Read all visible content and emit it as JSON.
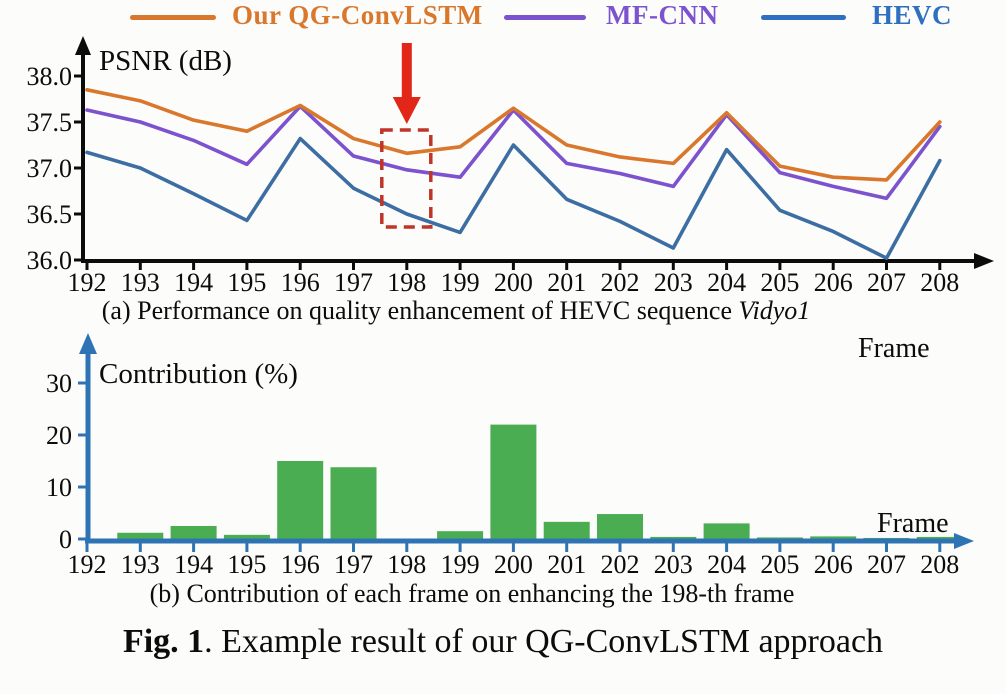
{
  "legend": {
    "items": [
      {
        "label": "Our QG-ConvLSTM",
        "color": "#d9772c"
      },
      {
        "label": "MF-CNN",
        "color": "#7c52ce"
      },
      {
        "label": "HEVC",
        "color": "#2f6fc1"
      }
    ]
  },
  "chart_data": [
    {
      "type": "line",
      "ylabel": "PSNR (dB)",
      "xlabel": "Frame",
      "x": [
        192,
        193,
        194,
        195,
        196,
        197,
        198,
        199,
        200,
        201,
        202,
        203,
        204,
        205,
        206,
        207,
        208
      ],
      "ylim": [
        36.0,
        38.2
      ],
      "yticks": [
        36.0,
        36.5,
        37.0,
        37.5,
        38.0
      ],
      "grid": false,
      "legend_position": "top",
      "series": [
        {
          "name": "HEVC",
          "color": "#3c6da3",
          "values": [
            37.17,
            37.0,
            36.72,
            36.43,
            37.32,
            36.78,
            36.5,
            36.3,
            37.25,
            36.66,
            36.42,
            36.13,
            37.2,
            36.54,
            36.31,
            36.02,
            37.08
          ]
        },
        {
          "name": "MF-CNN",
          "color": "#7c52ce",
          "values": [
            37.63,
            37.5,
            37.3,
            37.04,
            37.67,
            37.13,
            36.98,
            36.9,
            37.63,
            37.05,
            36.94,
            36.8,
            37.58,
            36.95,
            36.8,
            36.67,
            37.45
          ]
        },
        {
          "name": "Our QG-ConvLSTM",
          "color": "#d9772c",
          "values": [
            37.85,
            37.73,
            37.52,
            37.4,
            37.68,
            37.32,
            37.16,
            37.23,
            37.65,
            37.25,
            37.12,
            37.05,
            37.6,
            37.02,
            36.9,
            36.87,
            37.5
          ]
        }
      ],
      "annotations": {
        "highlighted_frame": 198,
        "arrow_color": "#e22718",
        "box_color": "#c03527"
      },
      "caption_prefix": "(a) Performance on quality enhancement of HEVC sequence ",
      "caption_italic": "Vidyo1"
    },
    {
      "type": "bar",
      "ylabel": "Contribution (%)",
      "xlabel": "Frame",
      "categories": [
        192,
        193,
        194,
        195,
        196,
        197,
        198,
        199,
        200,
        201,
        202,
        203,
        204,
        205,
        206,
        207,
        208
      ],
      "values": [
        0,
        1.2,
        2.5,
        0.8,
        15.0,
        13.8,
        0,
        1.5,
        22.0,
        3.3,
        4.8,
        0.4,
        3.0,
        0.3,
        0.5,
        0.2,
        0.4
      ],
      "ylim": [
        0,
        35
      ],
      "yticks": [
        0,
        10,
        20,
        30
      ],
      "grid": false,
      "bar_color": "#4bad52",
      "axis_color": "#2e74b5",
      "caption": "(b) Contribution of each frame on enhancing the 198-th frame"
    }
  ],
  "figure_caption": {
    "bold": "Fig. 1",
    "rest": ". Example result of our QG-ConvLSTM approach"
  }
}
